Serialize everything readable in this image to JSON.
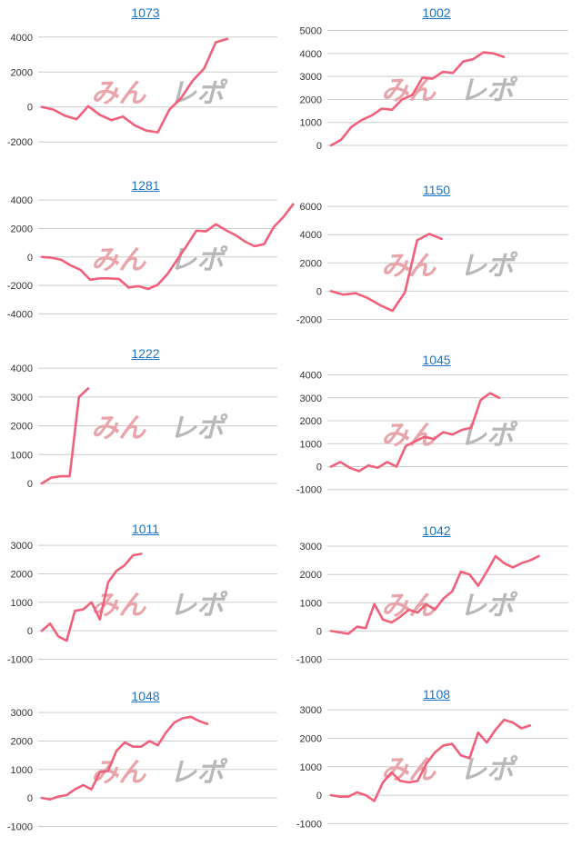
{
  "colors": {
    "line": "#f0607a",
    "title": "#1a73c8",
    "zero_line": "#cccccc",
    "watermark_pink": "#e8a4a8",
    "watermark_gray": "#b8b8b8"
  },
  "watermark": {
    "text_a": "みんレポ",
    "icon": "watermark-logo"
  },
  "chart_data": [
    {
      "type": "line",
      "title": "1073",
      "yticks": [
        4000,
        2000,
        0,
        -2000
      ],
      "ylim": [
        -2300,
        4300
      ],
      "x_count": 21,
      "values": [
        0,
        -150,
        -500,
        -700,
        50,
        -450,
        -750,
        -550,
        -1050,
        -1350,
        -1450,
        -150,
        500,
        1500,
        2200,
        3700,
        3900
      ]
    },
    {
      "type": "line",
      "title": "1002",
      "yticks": [
        5000,
        4000,
        3000,
        2000,
        1000,
        0
      ],
      "ylim": [
        0,
        5100
      ],
      "x_count": 24,
      "values": [
        0,
        250,
        800,
        1100,
        1300,
        1600,
        1550,
        2000,
        2200,
        2950,
        2900,
        3200,
        3150,
        3650,
        3750,
        4050,
        4000,
        3850
      ]
    },
    {
      "type": "line",
      "title": "1281",
      "yticks": [
        4000,
        2000,
        0,
        -2000,
        -4000
      ],
      "ylim": [
        -4100,
        4200
      ],
      "x_count": 25,
      "values": [
        0,
        -50,
        -200,
        -600,
        -900,
        -1600,
        -1500,
        -1500,
        -1550,
        -2150,
        -2050,
        -2250,
        -1950,
        -1200,
        -200,
        800,
        1850,
        1800,
        2300,
        1900,
        1550,
        1100,
        750,
        900,
        2100,
        2800,
        3700
      ]
    },
    {
      "type": "line",
      "title": "1150",
      "yticks": [
        6000,
        4000,
        2000,
        0,
        -2000
      ],
      "ylim": [
        -2100,
        6200
      ],
      "x_count": 20,
      "values": [
        0,
        -250,
        -150,
        -500,
        -1000,
        -1400,
        -100,
        3600,
        4050,
        3700
      ]
    },
    {
      "type": "line",
      "title": "1222",
      "yticks": [
        4000,
        3000,
        2000,
        1000,
        0
      ],
      "ylim": [
        0,
        4100
      ],
      "x_count": 26,
      "values": [
        0,
        200,
        250,
        250,
        3000,
        3300
      ]
    },
    {
      "type": "line",
      "title": "1045",
      "yticks": [
        4000,
        3000,
        2000,
        1000,
        0,
        -1000
      ],
      "ylim": [
        -1050,
        4100
      ],
      "x_count": 26,
      "values": [
        0,
        200,
        -50,
        -200,
        50,
        -50,
        200,
        0,
        900,
        1100,
        1300,
        1200,
        1500,
        1400,
        1600,
        1700,
        2900,
        3200,
        3000
      ]
    },
    {
      "type": "line",
      "title": "1011",
      "yticks": [
        3000,
        2000,
        1000,
        0,
        -1000
      ],
      "ylim": [
        -1050,
        3100
      ],
      "x_count": 29,
      "values": [
        0,
        250,
        -200,
        -350,
        700,
        750,
        1000,
        400,
        1700,
        2100,
        2300,
        2650,
        2700
      ]
    },
    {
      "type": "line",
      "title": "1042",
      "yticks": [
        3000,
        2000,
        1000,
        0,
        -1000
      ],
      "ylim": [
        -1050,
        3100
      ],
      "x_count": 28,
      "values": [
        0,
        -50,
        -100,
        150,
        100,
        950,
        400,
        300,
        500,
        750,
        650,
        950,
        750,
        1150,
        1400,
        2100,
        2000,
        1600,
        2100,
        2650,
        2400,
        2250,
        2400,
        2500,
        2650
      ]
    },
    {
      "type": "line",
      "title": "1048",
      "yticks": [
        3000,
        2000,
        1000,
        0,
        -1000
      ],
      "ylim": [
        -1050,
        3100
      ],
      "x_count": 29,
      "values": [
        0,
        -50,
        50,
        100,
        300,
        450,
        300,
        900,
        950,
        1650,
        1950,
        1800,
        1800,
        2000,
        1850,
        2300,
        2650,
        2800,
        2850,
        2700,
        2600
      ]
    },
    {
      "type": "line",
      "title": "1108",
      "yticks": [
        3000,
        2000,
        1000,
        0,
        -1000
      ],
      "ylim": [
        -1050,
        3100
      ],
      "x_count": 28,
      "values": [
        0,
        -50,
        -50,
        100,
        0,
        -200,
        450,
        800,
        500,
        450,
        500,
        1100,
        1500,
        1750,
        1800,
        1400,
        1300,
        2200,
        1850,
        2300,
        2650,
        2550,
        2350,
        2450
      ]
    }
  ]
}
